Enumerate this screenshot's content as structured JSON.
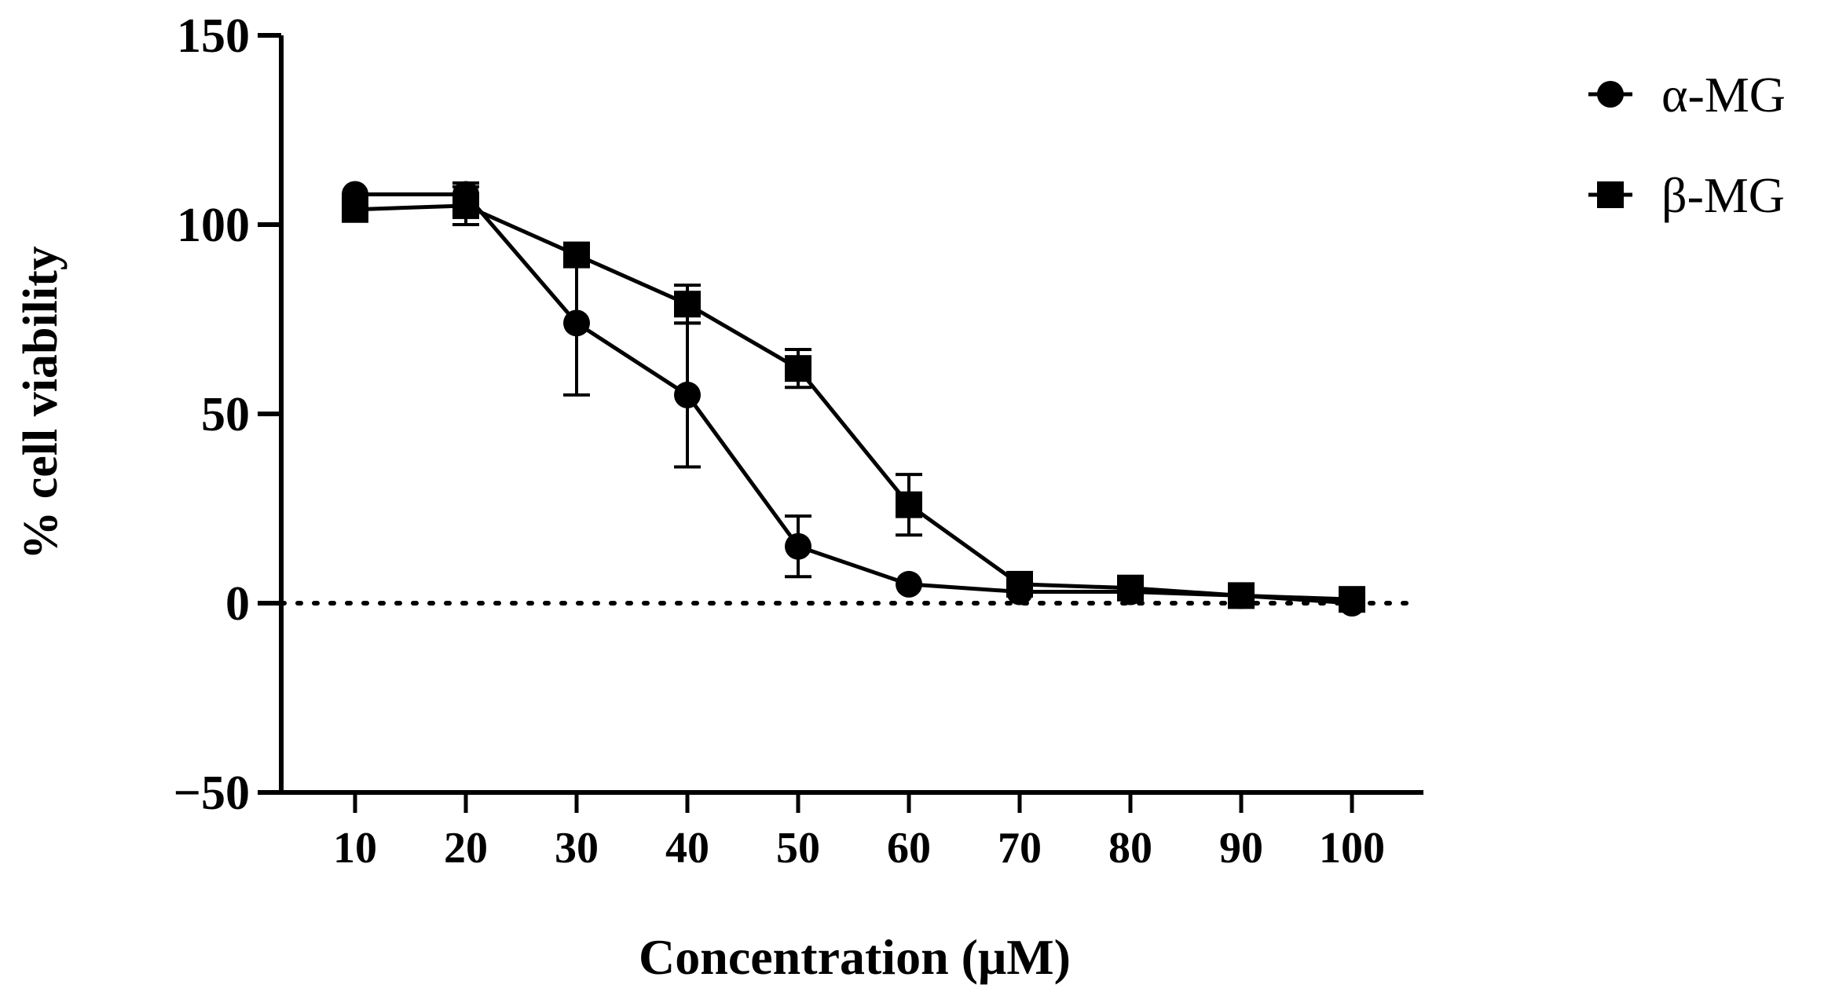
{
  "chart_data": {
    "type": "line",
    "title": "",
    "xlabel": "Concentration (μM)",
    "ylabel": "% cell viability",
    "x": [
      10,
      20,
      30,
      40,
      50,
      60,
      70,
      80,
      90,
      100
    ],
    "x_tick_labels": [
      "10",
      "20",
      "30",
      "40",
      "50",
      "60",
      "70",
      "80",
      "90",
      "100"
    ],
    "ylim": [
      -50,
      150
    ],
    "y_ticks": [
      -50,
      0,
      50,
      100,
      150
    ],
    "y_tick_labels": [
      "−50",
      "0",
      "50",
      "100",
      "150"
    ],
    "reference_line": {
      "y": 0,
      "style": "dotted"
    },
    "legend_position": "top-right",
    "series": [
      {
        "name": "α-MG",
        "marker": "circle",
        "values": [
          108,
          108,
          74,
          55,
          15,
          5,
          3,
          3,
          2,
          0
        ],
        "errors": [
          0,
          3,
          19,
          19,
          8,
          0,
          0,
          0,
          0,
          0
        ]
      },
      {
        "name": "β-MG",
        "marker": "square",
        "values": [
          104,
          105,
          92,
          79,
          62,
          26,
          5,
          4,
          2,
          1
        ],
        "errors": [
          0,
          5,
          0,
          5,
          5,
          8,
          0,
          0,
          0,
          0
        ]
      }
    ]
  }
}
